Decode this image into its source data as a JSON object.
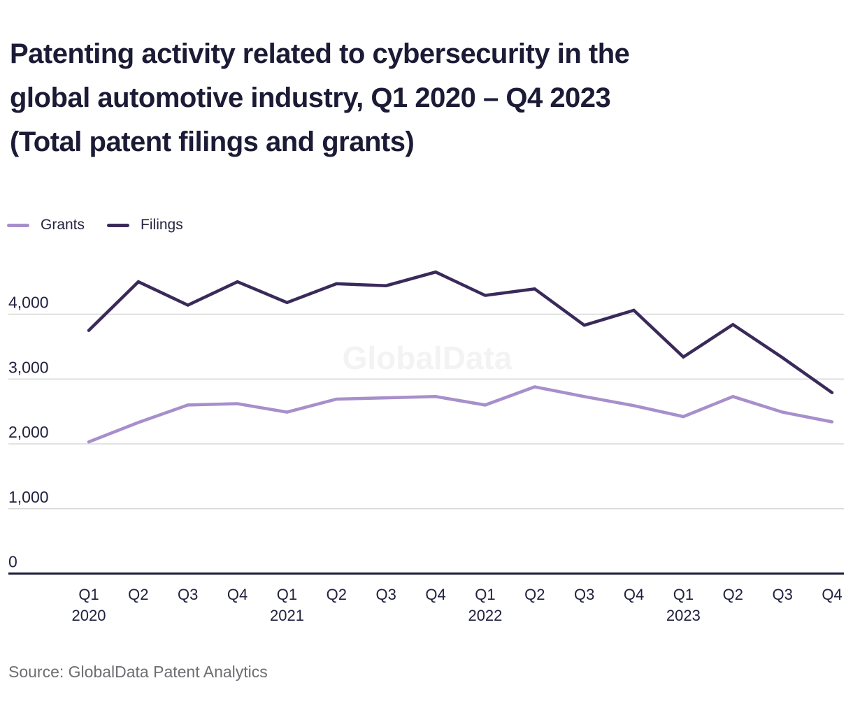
{
  "header": {
    "title": "Patenting activity related to cybersecurity in the global automotive industry, Q1 2020 – Q4 2023 (Total patent filings and grants)",
    "title_lines": [
      "Patenting activity related to cybersecurity in the",
      "global automotive industry, Q1 2020 – Q4 2023",
      "(Total patent filings and grants)"
    ]
  },
  "chart_data": {
    "type": "line",
    "title": "Patenting activity related to cybersecurity in the global automotive industry, Q1 2020 – Q4 2023 (Total patent filings and grants)",
    "categories": [
      "Q1 2020",
      "Q2 2020",
      "Q3 2020",
      "Q4 2020",
      "Q1 2021",
      "Q2 2021",
      "Q3 2021",
      "Q4 2021",
      "Q1 2022",
      "Q2 2022",
      "Q3 2022",
      "Q4 2022",
      "Q1 2023",
      "Q2 2023",
      "Q3 2023",
      "Q4 2023"
    ],
    "series": [
      {
        "name": "Grants",
        "color": "#a78fcb",
        "values": [
          2030,
          2330,
          2600,
          2620,
          2490,
          2690,
          2710,
          2730,
          2600,
          2880,
          2730,
          2590,
          2420,
          2730,
          2490,
          2340
        ]
      },
      {
        "name": "Filings",
        "color": "#3a2a5a",
        "values": [
          3750,
          4500,
          4140,
          4500,
          4180,
          4470,
          4440,
          4650,
          4290,
          4390,
          3830,
          4060,
          3340,
          3840,
          3330,
          2790
        ]
      }
    ],
    "xlabel": "",
    "ylabel": "",
    "ylim": [
      0,
      5000
    ],
    "y_ticks": [
      0,
      1000,
      2000,
      3000,
      4000
    ],
    "y_tick_labels": [
      "0",
      "1,000",
      "2,000",
      "3,000",
      "4,000"
    ],
    "grid": true,
    "legend_position": "top-left",
    "watermark": "GlobalData"
  },
  "colors": {
    "background": "#ffffff",
    "title_text": "#1b1b36",
    "tick_text": "#21213f",
    "gridline": "#d8d8d8",
    "axis_line": "#1c1c38",
    "watermark_text": "#f3f3f3",
    "source_text": "#6e6e73"
  },
  "footer": {
    "source": "Source: GlobalData Patent Analytics"
  }
}
